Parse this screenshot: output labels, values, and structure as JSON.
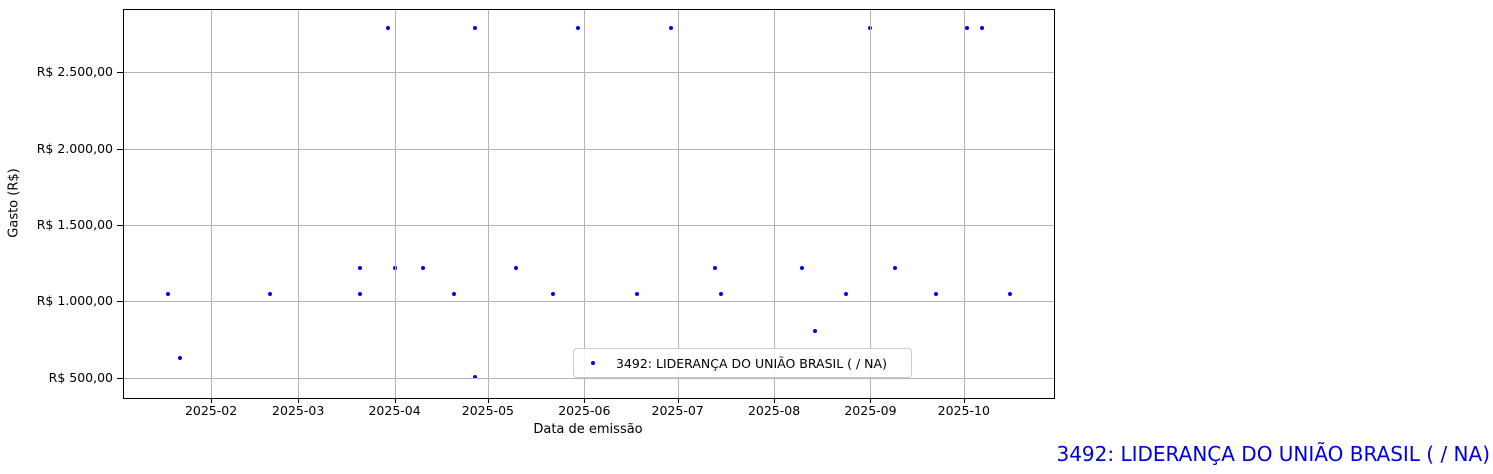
{
  "chart_data": {
    "type": "scatter",
    "title": "",
    "xlabel": "Data de emissão",
    "ylabel": "Gasto (R$)",
    "grid": true,
    "legend_position": "lower right",
    "x_axis": {
      "min": "2025-01-04",
      "max": "2025-10-30",
      "ticks": [
        {
          "value": "2025-02-01",
          "label": "2025-02"
        },
        {
          "value": "2025-03-01",
          "label": "2025-03"
        },
        {
          "value": "2025-04-01",
          "label": "2025-04"
        },
        {
          "value": "2025-05-01",
          "label": "2025-05"
        },
        {
          "value": "2025-06-01",
          "label": "2025-06"
        },
        {
          "value": "2025-07-01",
          "label": "2025-07"
        },
        {
          "value": "2025-08-01",
          "label": "2025-08"
        },
        {
          "value": "2025-09-01",
          "label": "2025-09"
        },
        {
          "value": "2025-10-01",
          "label": "2025-10"
        }
      ]
    },
    "y_axis": {
      "min": 369,
      "max": 2906,
      "ticks": [
        {
          "value": 500,
          "label": "R$ 500,00"
        },
        {
          "value": 1000,
          "label": "R$ 1.000,00"
        },
        {
          "value": 1500,
          "label": "R$ 1.500,00"
        },
        {
          "value": 2000,
          "label": "R$ 2.000,00"
        },
        {
          "value": 2500,
          "label": "R$ 2.500,00"
        }
      ]
    },
    "series": [
      {
        "name": "3492: LIDERANÇA DO UNIÃO BRASIL ( / NA)",
        "marker": "dot",
        "color": "#0000ff",
        "points": [
          {
            "date": "2025-01-18",
            "value": 1050
          },
          {
            "date": "2025-01-22",
            "value": 630
          },
          {
            "date": "2025-02-20",
            "value": 1050
          },
          {
            "date": "2025-03-21",
            "value": 1050
          },
          {
            "date": "2025-03-21",
            "value": 1220
          },
          {
            "date": "2025-03-30",
            "value": 2790
          },
          {
            "date": "2025-04-01",
            "value": 1220
          },
          {
            "date": "2025-04-10",
            "value": 1220
          },
          {
            "date": "2025-04-20",
            "value": 1050
          },
          {
            "date": "2025-04-27",
            "value": 2790
          },
          {
            "date": "2025-04-27",
            "value": 505
          },
          {
            "date": "2025-05-10",
            "value": 1220
          },
          {
            "date": "2025-05-22",
            "value": 1050
          },
          {
            "date": "2025-05-30",
            "value": 2790
          },
          {
            "date": "2025-06-18",
            "value": 1050
          },
          {
            "date": "2025-06-29",
            "value": 2790
          },
          {
            "date": "2025-07-13",
            "value": 1220
          },
          {
            "date": "2025-07-15",
            "value": 1050
          },
          {
            "date": "2025-08-10",
            "value": 1220
          },
          {
            "date": "2025-08-14",
            "value": 805
          },
          {
            "date": "2025-08-24",
            "value": 1050
          },
          {
            "date": "2025-09-01",
            "value": 2790
          },
          {
            "date": "2025-09-09",
            "value": 1220
          },
          {
            "date": "2025-09-22",
            "value": 1050
          },
          {
            "date": "2025-10-02",
            "value": 2790
          },
          {
            "date": "2025-10-07",
            "value": 2790
          },
          {
            "date": "2025-10-16",
            "value": 1050
          }
        ]
      }
    ],
    "legend_label": "3492: LIDERANÇA DO UNIÃO BRASIL ( / NA)"
  },
  "annotation": {
    "text": "3492: LIDERANÇA DO UNIÃO BRASIL ( / NA)",
    "color": "#0000dd"
  },
  "colors": {
    "marker": "#0000ff",
    "grid": "#b4b4b4",
    "axis": "#000000",
    "legend_border": "#cccccc"
  }
}
